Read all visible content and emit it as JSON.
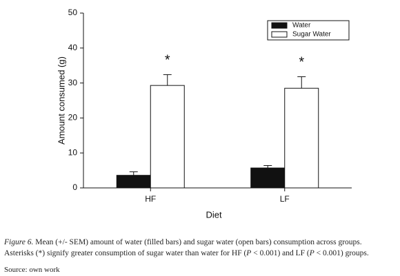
{
  "chart_data": {
    "type": "bar",
    "categories": [
      "HF",
      "LF"
    ],
    "series": [
      {
        "name": "Water",
        "color": "#111111",
        "values": [
          3.6,
          5.7
        ],
        "errors": [
          1.0,
          0.7
        ]
      },
      {
        "name": "Sugar Water",
        "color": "#ffffff",
        "values": [
          29.3,
          28.5
        ],
        "errors": [
          3.1,
          3.3
        ]
      }
    ],
    "annotations": [
      "*",
      "*"
    ],
    "xlabel": "Diet",
    "ylabel": "Amount consumed (g)",
    "ylim": [
      0,
      50
    ],
    "yticks": [
      0,
      10,
      20,
      30,
      40,
      50
    ],
    "legend": "upper right"
  },
  "caption": {
    "lines": [
      [
        "Figure 6.",
        " Mean (+/- SEM) amount of water (filled bars) and sugar water (open bars) consumption across groups."
      ],
      [
        "Asterisks (*) signify greater consumption of sugar water than water for HF (",
        "P",
        " < 0.001) and LF (",
        "P",
        " < 0.001) groups."
      ]
    ]
  },
  "source": "Source: own work"
}
